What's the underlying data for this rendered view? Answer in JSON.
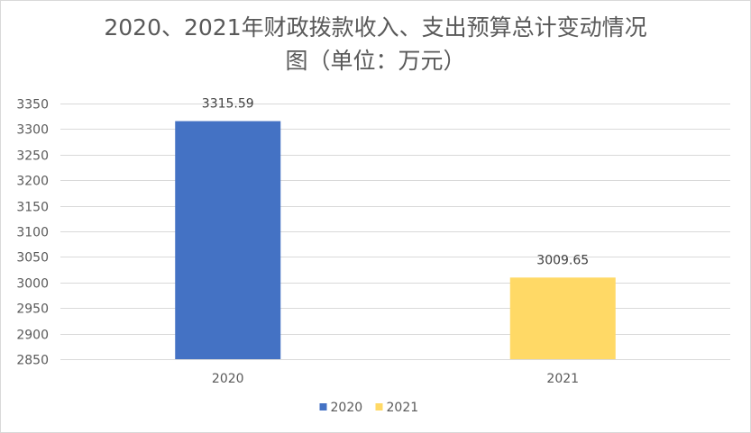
{
  "chart_data": {
    "type": "bar",
    "title_lines": [
      "2020、2021年财政拨款收入、支出预算总计变动情况",
      "图（单位：万元）"
    ],
    "categories": [
      "2020",
      "2021"
    ],
    "values": [
      3315.59,
      3009.65
    ],
    "data_labels": [
      "3315.59",
      "3009.65"
    ],
    "colors": [
      "#4472c4",
      "#ffd966"
    ],
    "ylim": [
      2850,
      3350
    ],
    "y_ticks": [
      2850,
      2900,
      2950,
      3000,
      3050,
      3100,
      3150,
      3200,
      3250,
      3300,
      3350
    ],
    "legend": [
      "2020",
      "2021"
    ],
    "legend_position": "bottom",
    "grid": true,
    "xlabel": "",
    "ylabel": ""
  }
}
